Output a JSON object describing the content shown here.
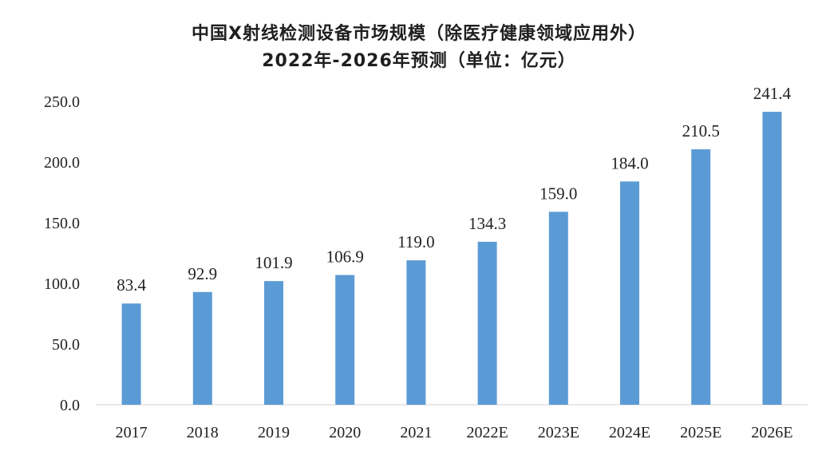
{
  "chart_data": {
    "type": "bar",
    "title": "中国X射线检测设备市场规模（除医疗健康领域应用外）",
    "subtitle": "2022年-2026年预测（单位：亿元）",
    "categories": [
      "2017",
      "2018",
      "2019",
      "2020",
      "2021",
      "2022E",
      "2023E",
      "2024E",
      "2025E",
      "2026E"
    ],
    "values": [
      83.4,
      92.9,
      101.9,
      106.9,
      119.0,
      134.3,
      159.0,
      184.0,
      210.5,
      241.4
    ],
    "value_labels": [
      "83.4",
      "92.9",
      "101.9",
      "106.9",
      "119.0",
      "134.3",
      "159.0",
      "184.0",
      "210.5",
      "241.4"
    ],
    "ylim": [
      0,
      250
    ],
    "yticks": [
      0,
      50,
      100,
      150,
      200,
      250
    ],
    "ytick_labels": [
      "0.0",
      "50.0",
      "100.0",
      "150.0",
      "200.0",
      "250.0"
    ],
    "xlabel": "",
    "ylabel": "",
    "grid": false,
    "bar_color": "#5b9bd5"
  }
}
